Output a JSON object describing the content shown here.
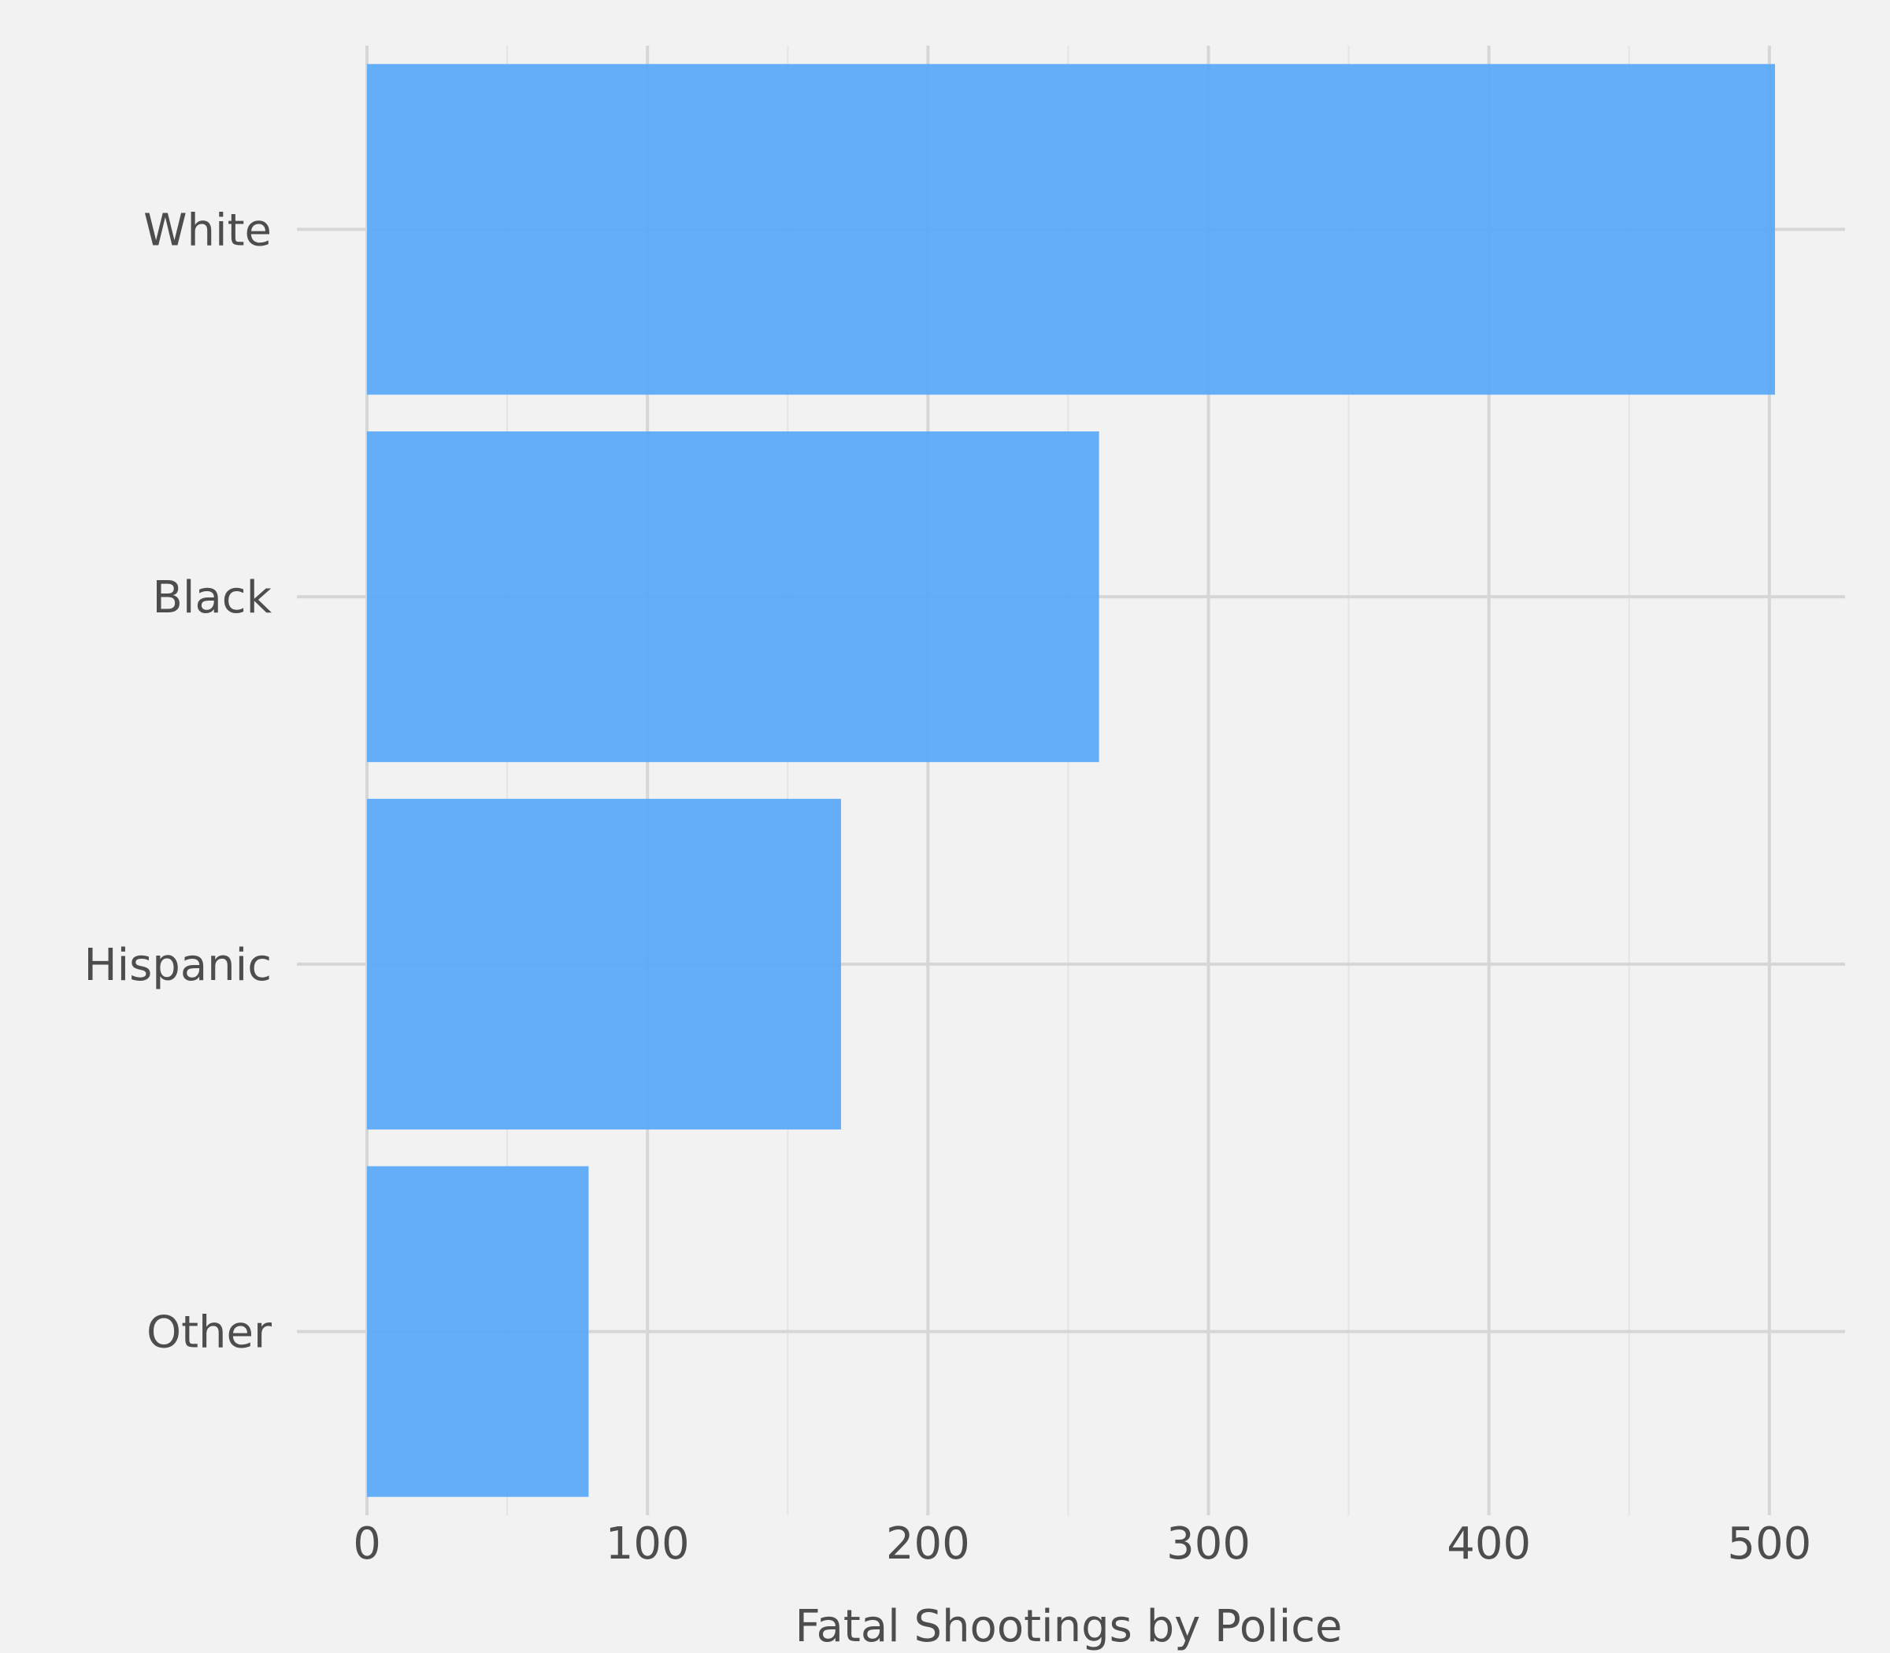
{
  "chart_data": {
    "type": "bar",
    "orientation": "horizontal",
    "categories": [
      "White",
      "Black",
      "Hispanic",
      "Other"
    ],
    "values": [
      502,
      261,
      169,
      79
    ],
    "title": "",
    "xlabel": "Fatal Shootings by Police",
    "ylabel": "",
    "xlim": [
      -25,
      527
    ],
    "xticks": [
      0,
      100,
      200,
      300,
      400,
      500
    ],
    "xtick_labels": [
      "0",
      "100",
      "200",
      "300",
      "400",
      "500"
    ],
    "grid": true,
    "legend": "none",
    "colors": {
      "background": "#f2f2f2",
      "bar": "#5caaf8",
      "grid_major": "#d6d6d6",
      "grid_minor": "#e4e4e4",
      "text": "#4d4d4d"
    }
  }
}
